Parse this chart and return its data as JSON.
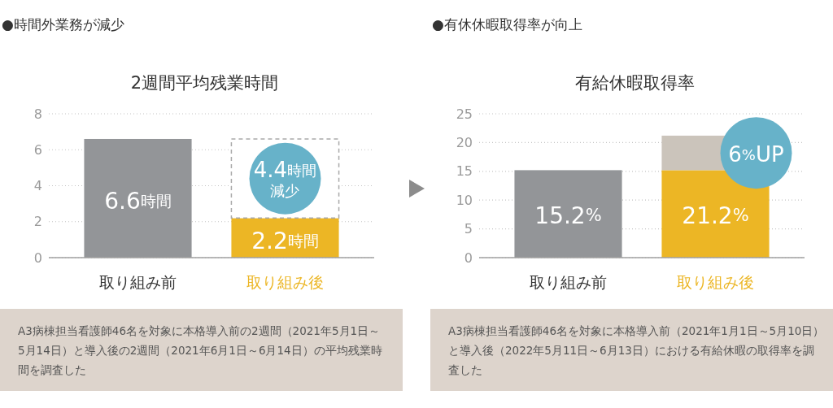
{
  "chart_data": [
    {
      "type": "bar",
      "title": "●時間外業務が減少",
      "subtitle": "2週間平均残業時間",
      "categories": [
        "取り組み前",
        "取り組み後"
      ],
      "stacked": true,
      "series": [
        {
          "colors": [
            "#939598",
            "#ecb625"
          ],
          "values": [
            6.6,
            2.2
          ],
          "value_labels": [
            "6.6時間",
            "2.2時間"
          ]
        },
        {
          "color": "#a9a9a9",
          "line_style": "dashed",
          "values": [
            null,
            4.4
          ]
        }
      ],
      "ylim": [
        0,
        8
      ],
      "yticks": [
        0,
        2,
        4,
        6,
        8
      ],
      "grid": "y",
      "annotations": [
        "4.4時間減少",
        "A3病棟担当看護師46名を対象に本格導入前の2週間（2021年5月1日～5月14日）と導入後の2週間（2021年6月1日～6月14日）の平均残業時間を調査した"
      ]
    },
    {
      "type": "bar",
      "title": "●有休休暇取得率が向上",
      "subtitle": "有給休暇取得率",
      "categories": [
        "取り組み前",
        "取り組み後"
      ],
      "stacked": true,
      "series": [
        {
          "colors": [
            "#939598",
            "#ecb625"
          ],
          "values": [
            15.2,
            15.2
          ]
        },
        {
          "color": "#cbc4bb",
          "values": [
            null,
            6
          ]
        }
      ],
      "totals": [
        "15.2%",
        "21.2%"
      ],
      "ylim": [
        0,
        25
      ],
      "yticks": [
        0,
        5,
        10,
        15,
        20,
        25
      ],
      "grid": "y",
      "annotations": [
        "6%UP",
        "A3病棟担当看護師46名を対象に本格導入前（2021年1月1日～5月10日）と導入後（2022年5月11日～6月13日）における有給休暇の取得率を調査した"
      ]
    }
  ]
}
